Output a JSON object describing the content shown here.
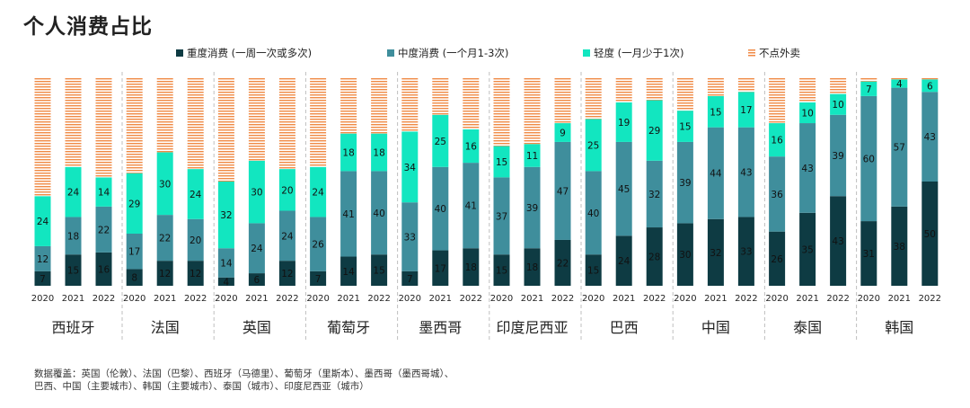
{
  "title": "个人消费占比",
  "legend": [
    {
      "label": "重度消费 (一周一次或多次)",
      "color": "#0e3b43"
    },
    {
      "label": "中度消费 (一个月1-3次)",
      "color": "#3f8e9c"
    },
    {
      "label": "轻度 (一月少于1次)",
      "color": "#12e6c0"
    },
    {
      "label": "不点外卖",
      "color": "#f08a45"
    }
  ],
  "source_note": [
    "数据覆盖：英国（伦敦）、法国（巴黎）、西班牙（马德里）、葡萄牙（里斯本）、墨西哥（墨西哥城）、",
    "巴西、中国（主要城市）、韩国（主要城市）、泰国（城市）、印度尼西亚（城市）"
  ],
  "chart_data": {
    "type": "bar",
    "stacked": true,
    "title": "个人消费占比",
    "ylim": [
      0,
      100
    ],
    "years": [
      "2020",
      "2021",
      "2022"
    ],
    "groups": [
      {
        "country": "西班牙",
        "heavy": [
          7,
          15,
          16
        ],
        "moderate": [
          12,
          18,
          22
        ],
        "light": [
          24,
          24,
          14
        ]
      },
      {
        "country": "法国",
        "heavy": [
          8,
          12,
          12
        ],
        "moderate": [
          17,
          22,
          20
        ],
        "light": [
          29,
          30,
          24
        ]
      },
      {
        "country": "英国",
        "heavy": [
          4,
          6,
          12
        ],
        "moderate": [
          14,
          24,
          24
        ],
        "light": [
          32,
          30,
          20
        ]
      },
      {
        "country": "葡萄牙",
        "heavy": [
          7,
          14,
          15
        ],
        "moderate": [
          26,
          41,
          40
        ],
        "light": [
          24,
          18,
          18
        ]
      },
      {
        "country": "墨西哥",
        "heavy": [
          7,
          17,
          18
        ],
        "moderate": [
          33,
          40,
          41
        ],
        "light": [
          34,
          25,
          16
        ]
      },
      {
        "country": "印度尼西亚",
        "heavy": [
          15,
          18,
          22
        ],
        "moderate": [
          37,
          39,
          47
        ],
        "light": [
          15,
          11,
          9
        ]
      },
      {
        "country": "巴西",
        "heavy": [
          15,
          24,
          28
        ],
        "moderate": [
          40,
          45,
          32
        ],
        "light": [
          25,
          19,
          29
        ]
      },
      {
        "country": "中国",
        "heavy": [
          30,
          32,
          33
        ],
        "moderate": [
          39,
          44,
          43
        ],
        "light": [
          15,
          15,
          17
        ]
      },
      {
        "country": "泰国",
        "heavy": [
          26,
          35,
          43
        ],
        "moderate": [
          36,
          43,
          39
        ],
        "light": [
          16,
          10,
          10
        ]
      },
      {
        "country": "韩国",
        "heavy": [
          31,
          38,
          50
        ],
        "moderate": [
          60,
          57,
          43
        ],
        "light": [
          7,
          4,
          6
        ]
      }
    ]
  }
}
